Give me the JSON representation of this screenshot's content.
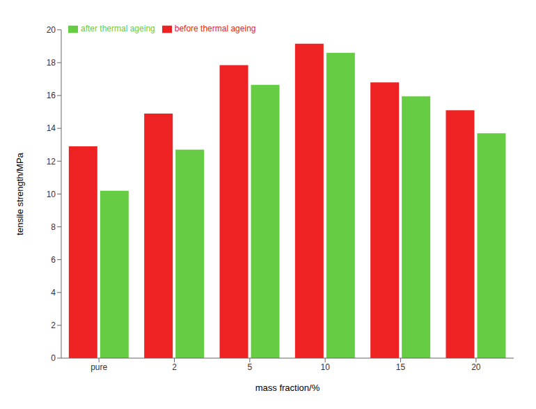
{
  "chart_data": {
    "type": "bar",
    "categories": [
      "pure",
      "2",
      "5",
      "10",
      "15",
      "20"
    ],
    "series": [
      {
        "name": "before thermal ageing",
        "color": "#ee2222",
        "values": [
          12.9,
          14.9,
          17.85,
          19.15,
          16.8,
          15.1
        ]
      },
      {
        "name": "after thermal ageing",
        "color": "#66cc44",
        "values": [
          10.2,
          12.7,
          16.65,
          18.6,
          15.95,
          13.7
        ]
      }
    ],
    "xlabel": "mass fraction/%",
    "ylabel": "tensile strength/MPa",
    "ylim": [
      0,
      20
    ],
    "yticks": [
      0,
      2,
      4,
      6,
      8,
      10,
      12,
      14,
      16,
      18,
      20
    ],
    "grid": false,
    "legend": "upper left"
  }
}
